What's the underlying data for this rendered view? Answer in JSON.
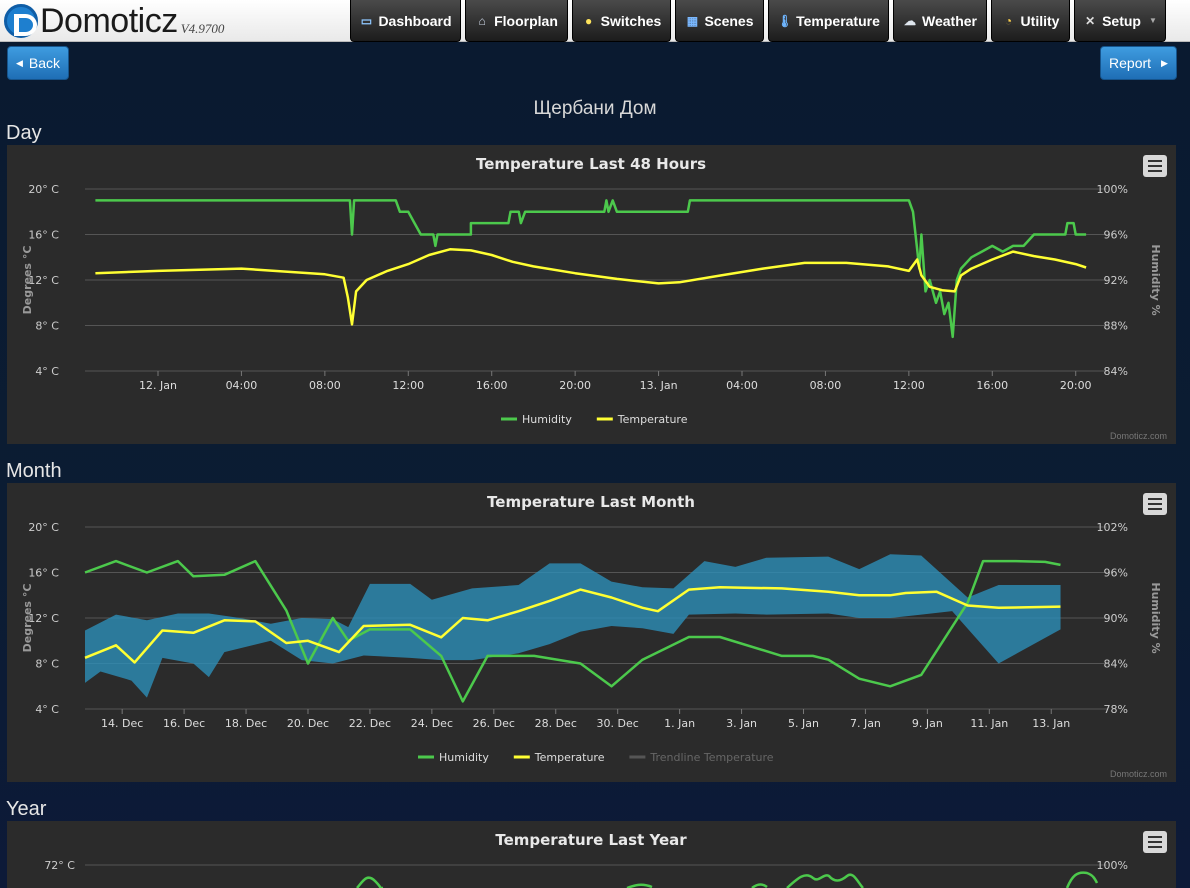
{
  "app": {
    "name": "Domoticz",
    "version": "V4.9700"
  },
  "nav": [
    {
      "label": "Dashboard",
      "icon": "monitor-icon"
    },
    {
      "label": "Floorplan",
      "icon": "house-icon"
    },
    {
      "label": "Switches",
      "icon": "bulb-icon"
    },
    {
      "label": "Scenes",
      "icon": "film-icon"
    },
    {
      "label": "Temperature",
      "icon": "thermometer-icon"
    },
    {
      "label": "Weather",
      "icon": "cloud-rain-icon"
    },
    {
      "label": "Utility",
      "icon": "gauge-icon"
    },
    {
      "label": "Setup",
      "icon": "tools-icon"
    }
  ],
  "page": {
    "back_label": "Back",
    "report_label": "Report",
    "title": "Щербани Дом"
  },
  "sections": {
    "day": "Day",
    "month": "Month",
    "year": "Year"
  },
  "credit": "Domoticz.com",
  "colors": {
    "humidity": "#4cc94c",
    "temperature": "#ffff33",
    "band": "#2d8fb8",
    "trendline": "#555555"
  },
  "chart_data": [
    {
      "type": "line",
      "title": "Temperature Last 48 Hours",
      "ylabel": "Degrees °C",
      "y2label": "Humidity %",
      "yticks": [
        "20° C",
        "16° C",
        "12° C",
        "8° C",
        "4° C"
      ],
      "y2ticks": [
        "100%",
        "96%",
        "92%",
        "88%",
        "84%"
      ],
      "ylim": [
        4,
        20
      ],
      "y2lim": [
        84,
        100
      ],
      "xticks": [
        "12. Jan",
        "04:00",
        "08:00",
        "12:00",
        "16:00",
        "20:00",
        "13. Jan",
        "04:00",
        "08:00",
        "12:00",
        "16:00",
        "20:00"
      ],
      "xlim_hours": [
        -3.5,
        45.5
      ],
      "xtick_hours": [
        0,
        4,
        8,
        12,
        16,
        20,
        24,
        28,
        32,
        36,
        40,
        44
      ],
      "grid": true,
      "legend": "bottom-center",
      "series": [
        {
          "name": "Humidity",
          "axis": "y2",
          "points": [
            [
              -3,
              99
            ],
            [
              9.2,
              99
            ],
            [
              9.3,
              96
            ],
            [
              9.4,
              99
            ],
            [
              11.4,
              99
            ],
            [
              11.6,
              98
            ],
            [
              12,
              98
            ],
            [
              12.3,
              97
            ],
            [
              12.6,
              96
            ],
            [
              13.2,
              96
            ],
            [
              13.3,
              95
            ],
            [
              13.4,
              96
            ],
            [
              15,
              96
            ],
            [
              15,
              97
            ],
            [
              16.8,
              97
            ],
            [
              16.9,
              98
            ],
            [
              17.3,
              98
            ],
            [
              17.4,
              97
            ],
            [
              17.6,
              98
            ],
            [
              21.4,
              98
            ],
            [
              21.5,
              99
            ],
            [
              21.6,
              98
            ],
            [
              21.8,
              99
            ],
            [
              22,
              98
            ],
            [
              25.4,
              98
            ],
            [
              25.5,
              99
            ],
            [
              34,
              99
            ],
            [
              36,
              99
            ],
            [
              36.2,
              98
            ],
            [
              36.5,
              93
            ],
            [
              36.6,
              96
            ],
            [
              36.8,
              91
            ],
            [
              37,
              92
            ],
            [
              37.3,
              90
            ],
            [
              37.5,
              91
            ],
            [
              37.7,
              89
            ],
            [
              37.9,
              90
            ],
            [
              38.1,
              87
            ],
            [
              38.3,
              92
            ],
            [
              38.5,
              93
            ],
            [
              39,
              94
            ],
            [
              39.5,
              94.5
            ],
            [
              40,
              95
            ],
            [
              40.5,
              94.5
            ],
            [
              41,
              95
            ],
            [
              41.5,
              95
            ],
            [
              42,
              96
            ],
            [
              42.5,
              96
            ],
            [
              43.5,
              96
            ],
            [
              43.6,
              97
            ],
            [
              43.9,
              97
            ],
            [
              44,
              96
            ],
            [
              44.5,
              96
            ]
          ]
        },
        {
          "name": "Temperature",
          "axis": "y",
          "points": [
            [
              -3,
              12.6
            ],
            [
              0,
              12.8
            ],
            [
              4,
              13
            ],
            [
              8,
              12.5
            ],
            [
              8.9,
              12.2
            ],
            [
              9.1,
              10.5
            ],
            [
              9.3,
              8.1
            ],
            [
              9.5,
              11
            ],
            [
              10,
              12
            ],
            [
              11,
              12.8
            ],
            [
              12,
              13.4
            ],
            [
              13,
              14.2
            ],
            [
              14,
              14.7
            ],
            [
              15,
              14.6
            ],
            [
              16,
              14.2
            ],
            [
              17,
              13.6
            ],
            [
              18,
              13.2
            ],
            [
              20,
              12.6
            ],
            [
              22,
              12.1
            ],
            [
              24,
              11.7
            ],
            [
              25,
              11.8
            ],
            [
              27,
              12.4
            ],
            [
              29,
              13
            ],
            [
              31,
              13.5
            ],
            [
              33,
              13.5
            ],
            [
              35,
              13.2
            ],
            [
              36,
              12.8
            ],
            [
              36.4,
              13.8
            ],
            [
              36.6,
              12.4
            ],
            [
              37,
              11.4
            ],
            [
              37.6,
              11.1
            ],
            [
              38.2,
              11
            ],
            [
              38.5,
              12.4
            ],
            [
              39,
              13
            ],
            [
              40,
              13.8
            ],
            [
              41,
              14.5
            ],
            [
              42,
              14.1
            ],
            [
              43,
              13.8
            ],
            [
              44,
              13.4
            ],
            [
              44.5,
              13.1
            ]
          ]
        }
      ]
    },
    {
      "type": "line",
      "title": "Temperature Last Month",
      "ylabel": "Degrees °C",
      "y2label": "Humidity %",
      "yticks": [
        "20° C",
        "16° C",
        "12° C",
        "8° C",
        "4° C"
      ],
      "y2ticks": [
        "102%",
        "96%",
        "90%",
        "84%",
        "78%"
      ],
      "ylim": [
        4,
        20
      ],
      "y2lim": [
        78,
        102
      ],
      "xticks": [
        "14. Dec",
        "16. Dec",
        "18. Dec",
        "20. Dec",
        "22. Dec",
        "24. Dec",
        "26. Dec",
        "28. Dec",
        "30. Dec",
        "1. Jan",
        "3. Jan",
        "5. Jan",
        "7. Jan",
        "9. Jan",
        "11. Jan",
        "13. Jan"
      ],
      "xlim_days": [
        0,
        33
      ],
      "xtick_days": [
        1.2,
        3.2,
        5.2,
        7.2,
        9.2,
        11.2,
        13.2,
        15.2,
        17.2,
        19.2,
        21.2,
        23.2,
        25.2,
        27.2,
        29.2,
        31.2
      ],
      "grid": true,
      "legend": "bottom-center",
      "series": [
        {
          "name": "Humidity",
          "axis": "y2",
          "points": [
            [
              0,
              96
            ],
            [
              1,
              97.5
            ],
            [
              2,
              96
            ],
            [
              3,
              97.5
            ],
            [
              3.5,
              95.5
            ],
            [
              4.5,
              95.7
            ],
            [
              5.5,
              97.5
            ],
            [
              6.5,
              91
            ],
            [
              7.2,
              84
            ],
            [
              8,
              90
            ],
            [
              8.5,
              87
            ],
            [
              9.2,
              88.5
            ],
            [
              10.5,
              88.5
            ],
            [
              11.5,
              85
            ],
            [
              12.2,
              79
            ],
            [
              13,
              85
            ],
            [
              14.5,
              85
            ],
            [
              16,
              84
            ],
            [
              17,
              81
            ],
            [
              18,
              84.5
            ],
            [
              19.5,
              87.5
            ],
            [
              20.5,
              87.5
            ],
            [
              22.5,
              85
            ],
            [
              23.5,
              85
            ],
            [
              24,
              84.5
            ],
            [
              25,
              82
            ],
            [
              26,
              81
            ],
            [
              27,
              82.5
            ],
            [
              28.5,
              92
            ],
            [
              29,
              97.5
            ],
            [
              30,
              97.5
            ],
            [
              31,
              97.4
            ],
            [
              31.5,
              97
            ]
          ]
        },
        {
          "name": "Temperature",
          "axis": "y",
          "points": [
            [
              0,
              8.5
            ],
            [
              1,
              9.6
            ],
            [
              1.6,
              8.1
            ],
            [
              2.5,
              10.9
            ],
            [
              3.5,
              10.7
            ],
            [
              4.5,
              11.8
            ],
            [
              5.5,
              11.7
            ],
            [
              6.5,
              9.8
            ],
            [
              7.2,
              10
            ],
            [
              8.2,
              9
            ],
            [
              9,
              11.3
            ],
            [
              10.5,
              11.4
            ],
            [
              11.5,
              10.3
            ],
            [
              12.2,
              12
            ],
            [
              13,
              11.8
            ],
            [
              14,
              12.6
            ],
            [
              15,
              13.5
            ],
            [
              16,
              14.5
            ],
            [
              17,
              13.8
            ],
            [
              18,
              12.9
            ],
            [
              18.5,
              12.6
            ],
            [
              19.5,
              14.5
            ],
            [
              20.5,
              14.7
            ],
            [
              22.5,
              14.6
            ],
            [
              24,
              14.3
            ],
            [
              25,
              14
            ],
            [
              26,
              14
            ],
            [
              26.5,
              14.2
            ],
            [
              27.5,
              14.3
            ],
            [
              28.5,
              13.1
            ],
            [
              29.5,
              12.9
            ],
            [
              31.5,
              13
            ]
          ]
        },
        {
          "name": "Trendline Temperature",
          "hidden": true,
          "points": []
        }
      ],
      "band": {
        "name": "Temperature range",
        "upper": [
          [
            0,
            10.9
          ],
          [
            1,
            12.3
          ],
          [
            2,
            11.8
          ],
          [
            3,
            12.4
          ],
          [
            4,
            12.4
          ],
          [
            5,
            12
          ],
          [
            6,
            11.5
          ],
          [
            7,
            12
          ],
          [
            8,
            11.9
          ],
          [
            8.5,
            11.2
          ],
          [
            9.2,
            15
          ],
          [
            10.5,
            15
          ],
          [
            11.2,
            13.6
          ],
          [
            12.5,
            14.6
          ],
          [
            14,
            14.9
          ],
          [
            15,
            16.8
          ],
          [
            16,
            16.8
          ],
          [
            17,
            15.2
          ],
          [
            18,
            14.7
          ],
          [
            19,
            14.6
          ],
          [
            20,
            17
          ],
          [
            21,
            16.5
          ],
          [
            22,
            17.3
          ],
          [
            24,
            17.4
          ],
          [
            25,
            16.3
          ],
          [
            26,
            17.6
          ],
          [
            27,
            17.5
          ],
          [
            28.5,
            13.8
          ],
          [
            29.5,
            14.9
          ],
          [
            31.5,
            14.9
          ]
        ],
        "lower": [
          [
            0,
            6.3
          ],
          [
            0.5,
            7.3
          ],
          [
            1.5,
            6.5
          ],
          [
            2,
            5
          ],
          [
            2.5,
            8.5
          ],
          [
            3.5,
            8
          ],
          [
            4,
            6.8
          ],
          [
            4.5,
            9
          ],
          [
            6,
            10
          ],
          [
            7,
            8.3
          ],
          [
            8,
            8
          ],
          [
            9,
            8.7
          ],
          [
            10.5,
            8.5
          ],
          [
            11.5,
            8.3
          ],
          [
            12.5,
            8.3
          ],
          [
            14,
            8.9
          ],
          [
            15,
            9.7
          ],
          [
            16,
            10.8
          ],
          [
            17,
            11.3
          ],
          [
            18,
            11.1
          ],
          [
            19,
            10.6
          ],
          [
            19.5,
            12.3
          ],
          [
            21,
            12.4
          ],
          [
            22,
            12.3
          ],
          [
            24,
            12.4
          ],
          [
            25,
            12
          ],
          [
            26,
            12
          ],
          [
            27,
            12.3
          ],
          [
            28,
            12.6
          ],
          [
            29.5,
            8
          ],
          [
            31.5,
            11
          ]
        ]
      }
    },
    {
      "type": "line",
      "title": "Temperature Last Year",
      "yticks": [
        "72° C"
      ],
      "y2ticks": [
        "100%"
      ]
    }
  ]
}
